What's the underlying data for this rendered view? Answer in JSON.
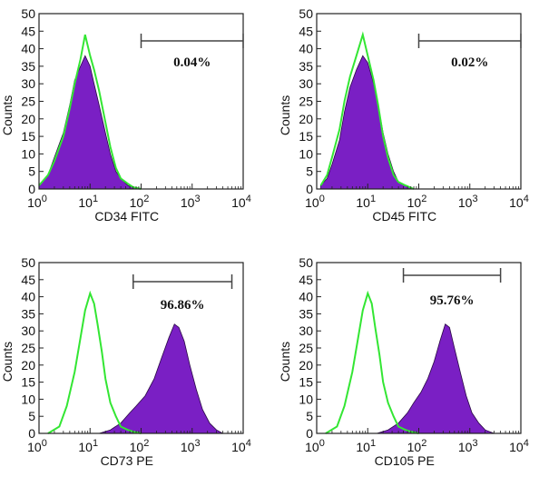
{
  "colors": {
    "filled": "#7a1fc4",
    "control": "#33e633",
    "axis": "#222222",
    "gate": "#444444"
  },
  "chart_data": [
    {
      "type": "area",
      "xlabel": "CD34 FITC",
      "ylabel": "Counts",
      "xscale": "log",
      "xlim": [
        1,
        10000
      ],
      "ylim": [
        0,
        50
      ],
      "yticks": [
        "0",
        "5",
        "10",
        "15",
        "20",
        "25",
        "30",
        "35",
        "40",
        "45",
        "50"
      ],
      "xticks": [
        {
          "base": "10",
          "exp": "0"
        },
        {
          "base": "10",
          "exp": "1"
        },
        {
          "base": "10",
          "exp": "2"
        },
        {
          "base": "10",
          "exp": "3"
        },
        {
          "base": "10",
          "exp": "4"
        }
      ],
      "gate": {
        "range": [
          100,
          10000
        ],
        "label": "0.04%"
      },
      "series": [
        {
          "style": "filled",
          "x": [
            1.0,
            1.5,
            2.0,
            3.0,
            4.0,
            5.0,
            6.5,
            8.0,
            10,
            12,
            15,
            20,
            25,
            32,
            40,
            55,
            70,
            100
          ],
          "values": [
            1,
            4,
            9,
            16,
            24,
            31,
            35,
            38,
            35,
            30,
            24,
            16,
            10,
            5,
            3,
            1,
            0.5,
            0
          ]
        },
        {
          "style": "control",
          "x": [
            1.0,
            1.5,
            2.0,
            3.0,
            4.0,
            5.0,
            6.5,
            8.0,
            10,
            12,
            15,
            20,
            25,
            32,
            40,
            55,
            70,
            100
          ],
          "values": [
            1,
            4,
            8,
            15,
            23,
            30,
            37,
            44,
            38,
            34,
            28,
            19,
            12,
            6,
            3,
            1.5,
            0.5,
            0
          ]
        }
      ]
    },
    {
      "type": "area",
      "xlabel": "CD45 FITC",
      "ylabel": "Counts",
      "xscale": "log",
      "xlim": [
        1,
        10000
      ],
      "ylim": [
        0,
        50
      ],
      "yticks": [
        "0",
        "5",
        "10",
        "15",
        "20",
        "25",
        "30",
        "35",
        "40",
        "45",
        "50"
      ],
      "xticks": [
        {
          "base": "10",
          "exp": "0"
        },
        {
          "base": "10",
          "exp": "1"
        },
        {
          "base": "10",
          "exp": "2"
        },
        {
          "base": "10",
          "exp": "3"
        },
        {
          "base": "10",
          "exp": "4"
        }
      ],
      "gate": {
        "range": [
          100,
          10000
        ],
        "label": "0.02%"
      },
      "series": [
        {
          "style": "filled",
          "x": [
            1.2,
            1.6,
            2.0,
            2.8,
            3.5,
            4.5,
            6.0,
            8.0,
            10,
            13,
            16,
            20,
            25,
            32,
            40,
            55,
            80
          ],
          "values": [
            1,
            3,
            7,
            14,
            22,
            29,
            34,
            38,
            36,
            30,
            24,
            16,
            10,
            5,
            2,
            1,
            0
          ]
        },
        {
          "style": "control",
          "x": [
            1.2,
            1.6,
            2.0,
            2.8,
            3.5,
            4.5,
            6.0,
            8.0,
            10,
            13,
            16,
            20,
            25,
            32,
            40,
            55,
            80
          ],
          "values": [
            1,
            4,
            9,
            17,
            25,
            32,
            38,
            44,
            38,
            31,
            24,
            15,
            9,
            4,
            2,
            1,
            0
          ]
        }
      ]
    },
    {
      "type": "area",
      "xlabel": "CD73 PE",
      "ylabel": "Counts",
      "xscale": "log",
      "xlim": [
        1,
        10000
      ],
      "ylim": [
        0,
        50
      ],
      "yticks": [
        "0",
        "5",
        "10",
        "15",
        "20",
        "25",
        "30",
        "35",
        "40",
        "45",
        "50"
      ],
      "xticks": [
        {
          "base": "10",
          "exp": "0"
        },
        {
          "base": "10",
          "exp": "1"
        },
        {
          "base": "10",
          "exp": "2"
        },
        {
          "base": "10",
          "exp": "3"
        },
        {
          "base": "10",
          "exp": "4"
        }
      ],
      "gate": {
        "range": [
          70,
          6000
        ],
        "label": "96.86%"
      },
      "series": [
        {
          "style": "filled",
          "x": [
            15,
            25,
            40,
            60,
            80,
            120,
            180,
            250,
            350,
            450,
            550,
            700,
            900,
            1200,
            1600,
            2200,
            3000,
            4000
          ],
          "values": [
            0,
            1,
            3,
            6,
            8,
            11,
            16,
            22,
            28,
            32,
            31,
            27,
            20,
            13,
            7,
            3,
            1,
            0
          ]
        },
        {
          "style": "control",
          "x": [
            1.5,
            2.5,
            3.5,
            5.0,
            6.5,
            8.0,
            10,
            12,
            14,
            17,
            20,
            25,
            32,
            40,
            55,
            70,
            100
          ],
          "values": [
            0,
            2,
            8,
            18,
            28,
            36,
            41,
            38,
            32,
            24,
            16,
            9,
            5,
            2,
            1,
            0.5,
            0
          ]
        }
      ]
    },
    {
      "type": "area",
      "xlabel": "CD105 PE",
      "ylabel": "Counts",
      "xscale": "log",
      "xlim": [
        1,
        10000
      ],
      "ylim": [
        0,
        50
      ],
      "yticks": [
        "0",
        "5",
        "10",
        "15",
        "20",
        "25",
        "30",
        "35",
        "40",
        "45",
        "50"
      ],
      "xticks": [
        {
          "base": "10",
          "exp": "0"
        },
        {
          "base": "10",
          "exp": "1"
        },
        {
          "base": "10",
          "exp": "2"
        },
        {
          "base": "10",
          "exp": "3"
        },
        {
          "base": "10",
          "exp": "4"
        }
      ],
      "gate": {
        "range": [
          50,
          4000
        ],
        "label": "95.76%"
      },
      "series": [
        {
          "style": "filled",
          "x": [
            15,
            25,
            40,
            60,
            80,
            110,
            150,
            200,
            260,
            330,
            400,
            500,
            650,
            850,
            1100,
            1500,
            2000,
            3000
          ],
          "values": [
            0,
            1,
            3,
            6,
            9,
            12,
            16,
            21,
            27,
            32,
            31,
            25,
            18,
            11,
            6,
            3,
            1,
            0
          ]
        },
        {
          "style": "control",
          "x": [
            1.5,
            2.5,
            3.5,
            5.0,
            6.5,
            8.0,
            10,
            12,
            14,
            17,
            20,
            25,
            32,
            40,
            55,
            70,
            100
          ],
          "values": [
            0,
            2,
            8,
            18,
            28,
            36,
            41,
            38,
            31,
            23,
            15,
            9,
            5,
            2,
            1,
            0.5,
            0
          ]
        }
      ]
    }
  ]
}
